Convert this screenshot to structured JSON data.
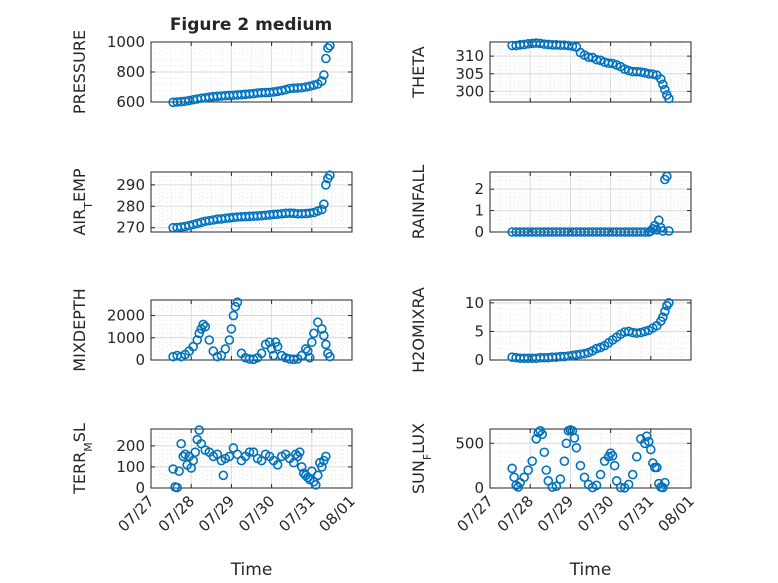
{
  "figure_title": "Figure 2 medium",
  "colors": {
    "series": "#0072BD",
    "axis": "#262626",
    "grid": "#d9d9d9",
    "background": "#ffffff"
  },
  "chart_data": [
    {
      "type": "scatter",
      "ylabel": "PRESSURE",
      "ylim": [
        600,
        1000
      ],
      "yticks": [
        600,
        800,
        1000
      ],
      "xlim": [
        0,
        5
      ],
      "xtick_labels": [],
      "xlabel": "",
      "x": [
        0.55,
        0.65,
        0.75,
        0.85,
        0.95,
        1.05,
        1.15,
        1.25,
        1.35,
        1.45,
        1.55,
        1.65,
        1.75,
        1.85,
        1.95,
        2.05,
        2.15,
        2.25,
        2.35,
        2.45,
        2.55,
        2.65,
        2.75,
        2.85,
        2.95,
        3.05,
        3.15,
        3.25,
        3.35,
        3.45,
        3.55,
        3.65,
        3.75,
        3.85,
        3.95,
        4.05,
        4.15,
        4.25,
        4.3,
        4.35,
        4.4,
        4.45
      ],
      "y": [
        598,
        600,
        602,
        605,
        610,
        615,
        620,
        625,
        628,
        632,
        636,
        638,
        640,
        642,
        644,
        645,
        647,
        649,
        651,
        654,
        656,
        660,
        662,
        663,
        664,
        667,
        671,
        676,
        682,
        690,
        692,
        694,
        695,
        700,
        705,
        712,
        720,
        740,
        780,
        890,
        960,
        975
      ]
    },
    {
      "type": "scatter",
      "ylabel": "THETA",
      "ylim": [
        297,
        314
      ],
      "yticks": [
        300,
        305,
        310
      ],
      "xlim": [
        0,
        5
      ],
      "xtick_labels": [],
      "xlabel": "",
      "x": [
        0.55,
        0.65,
        0.75,
        0.85,
        0.95,
        1.05,
        1.15,
        1.25,
        1.35,
        1.45,
        1.55,
        1.65,
        1.75,
        1.85,
        1.95,
        2.05,
        2.15,
        2.25,
        2.35,
        2.45,
        2.55,
        2.65,
        2.75,
        2.85,
        2.95,
        3.05,
        3.15,
        3.25,
        3.35,
        3.45,
        3.55,
        3.65,
        3.75,
        3.85,
        3.95,
        4.05,
        4.15,
        4.25,
        4.3,
        4.35,
        4.4,
        4.45
      ],
      "y": [
        313,
        313,
        313.2,
        313.3,
        313.5,
        313.6,
        313.7,
        313.6,
        313.4,
        313.3,
        313.2,
        313.2,
        313.1,
        313.1,
        313,
        312.8,
        312.6,
        311,
        310.3,
        309.7,
        309.6,
        309,
        308.8,
        308.3,
        308,
        307.9,
        307.5,
        307,
        306.3,
        305.9,
        305.6,
        305.6,
        305.5,
        305.3,
        305,
        304.9,
        304.6,
        303.5,
        302,
        300.5,
        299,
        298
      ]
    },
    {
      "type": "scatter",
      "ylabel": "AIR_TEMP",
      "ylim": [
        268,
        296
      ],
      "yticks": [
        270,
        280,
        290
      ],
      "xlim": [
        0,
        5
      ],
      "xtick_labels": [],
      "xlabel": "",
      "x": [
        0.55,
        0.65,
        0.75,
        0.85,
        0.95,
        1.05,
        1.15,
        1.25,
        1.35,
        1.45,
        1.55,
        1.65,
        1.75,
        1.85,
        1.95,
        2.05,
        2.15,
        2.25,
        2.35,
        2.45,
        2.55,
        2.65,
        2.75,
        2.85,
        2.95,
        3.05,
        3.15,
        3.25,
        3.35,
        3.45,
        3.55,
        3.65,
        3.75,
        3.85,
        3.95,
        4.05,
        4.15,
        4.25,
        4.3,
        4.35,
        4.4,
        4.45
      ],
      "y": [
        270,
        270.1,
        270.3,
        270.6,
        271,
        271.5,
        272,
        272.5,
        273,
        273.3,
        273.6,
        274,
        274.1,
        274.4,
        274.6,
        274.8,
        275,
        275.1,
        275.2,
        275.3,
        275.4,
        275.5,
        275.6,
        275.8,
        276,
        276.2,
        276.3,
        276.5,
        276.7,
        276.8,
        276.7,
        276.5,
        276.5,
        276.6,
        276.8,
        277.1,
        277.8,
        278.5,
        281,
        290,
        293,
        294.5
      ]
    },
    {
      "type": "scatter",
      "ylabel": "RAINFALL",
      "ylim": [
        0,
        2.8
      ],
      "yticks": [
        0,
        1,
        2
      ],
      "xlim": [
        0,
        5
      ],
      "xtick_labels": [],
      "xlabel": "",
      "x": [
        0.55,
        0.65,
        0.75,
        0.85,
        0.95,
        1.05,
        1.15,
        1.25,
        1.35,
        1.45,
        1.55,
        1.65,
        1.75,
        1.85,
        1.95,
        2.05,
        2.15,
        2.25,
        2.35,
        2.45,
        2.55,
        2.65,
        2.75,
        2.85,
        2.95,
        3.05,
        3.15,
        3.25,
        3.35,
        3.45,
        3.55,
        3.65,
        3.75,
        3.85,
        3.95,
        4.0,
        4.05,
        4.1,
        4.15,
        4.2,
        4.25,
        4.3,
        4.35,
        4.4,
        4.45
      ],
      "y": [
        0,
        0,
        0,
        0,
        0,
        0,
        0,
        0,
        0,
        0,
        0,
        0,
        0,
        0,
        0,
        0,
        0,
        0,
        0,
        0,
        0,
        0,
        0,
        0,
        0,
        0,
        0,
        0,
        0,
        0,
        0,
        0,
        0,
        0,
        0,
        0.05,
        0.15,
        0.3,
        0.1,
        0.55,
        0.2,
        0.05,
        2.45,
        2.6,
        0.05
      ]
    },
    {
      "type": "scatter",
      "ylabel": "MIXDEPTH",
      "ylim": [
        0,
        2700
      ],
      "yticks": [
        0,
        1000,
        2000
      ],
      "xlim": [
        0,
        5
      ],
      "xtick_labels": [],
      "xlabel": "",
      "x": [
        0.55,
        0.65,
        0.75,
        0.85,
        0.95,
        1.05,
        1.15,
        1.2,
        1.25,
        1.3,
        1.35,
        1.45,
        1.55,
        1.65,
        1.75,
        1.85,
        1.95,
        2.0,
        2.05,
        2.1,
        2.15,
        2.25,
        2.35,
        2.45,
        2.55,
        2.65,
        2.75,
        2.85,
        2.95,
        3.0,
        3.05,
        3.1,
        3.15,
        3.25,
        3.35,
        3.45,
        3.55,
        3.65,
        3.75,
        3.85,
        3.9,
        3.95,
        4.0,
        4.05,
        4.15,
        4.25,
        4.3,
        4.35,
        4.4,
        4.45
      ],
      "y": [
        150,
        200,
        150,
        250,
        400,
        600,
        900,
        1200,
        1400,
        1600,
        1500,
        900,
        400,
        150,
        200,
        500,
        900,
        1400,
        2000,
        2400,
        2600,
        300,
        100,
        50,
        30,
        100,
        300,
        700,
        800,
        500,
        200,
        800,
        600,
        200,
        100,
        50,
        30,
        50,
        200,
        500,
        400,
        100,
        800,
        1200,
        1700,
        1400,
        1100,
        700,
        300,
        150
      ]
    },
    {
      "type": "scatter",
      "ylabel": "H2OMIXRA",
      "ylim": [
        0,
        10.5
      ],
      "yticks": [
        0,
        5,
        10
      ],
      "xlim": [
        0,
        5
      ],
      "xtick_labels": [],
      "xlabel": "",
      "x": [
        0.55,
        0.65,
        0.75,
        0.85,
        0.95,
        1.05,
        1.15,
        1.25,
        1.35,
        1.45,
        1.55,
        1.65,
        1.75,
        1.85,
        1.95,
        2.05,
        2.15,
        2.25,
        2.35,
        2.45,
        2.55,
        2.65,
        2.75,
        2.85,
        2.95,
        3.05,
        3.15,
        3.25,
        3.35,
        3.45,
        3.55,
        3.65,
        3.75,
        3.85,
        3.95,
        4.05,
        4.15,
        4.25,
        4.3,
        4.35,
        4.4,
        4.45
      ],
      "y": [
        0.5,
        0.4,
        0.3,
        0.3,
        0.3,
        0.3,
        0.3,
        0.4,
        0.4,
        0.4,
        0.5,
        0.5,
        0.6,
        0.6,
        0.7,
        0.8,
        0.9,
        1,
        1.1,
        1.3,
        1.6,
        2,
        2.2,
        2.5,
        3,
        3.5,
        4,
        4.5,
        4.9,
        5,
        4.8,
        4.7,
        4.8,
        5,
        5.2,
        5.6,
        6,
        6.8,
        7.5,
        8.5,
        9.5,
        10
      ]
    },
    {
      "type": "scatter",
      "ylabel": "TERR_MSL",
      "ylim": [
        0,
        280
      ],
      "yticks": [
        0,
        100,
        200
      ],
      "xlim": [
        0,
        5
      ],
      "xtick_labels": [
        "07/27",
        "07/28",
        "07/29",
        "07/30",
        "07/31",
        "08/01"
      ],
      "xlabel": "Time",
      "x": [
        0.55,
        0.6,
        0.65,
        0.7,
        0.75,
        0.8,
        0.85,
        0.9,
        0.95,
        1.0,
        1.05,
        1.1,
        1.15,
        1.2,
        1.25,
        1.35,
        1.45,
        1.55,
        1.65,
        1.75,
        1.8,
        1.85,
        1.95,
        2.05,
        2.15,
        2.25,
        2.35,
        2.45,
        2.55,
        2.65,
        2.75,
        2.85,
        2.95,
        3.05,
        3.15,
        3.25,
        3.35,
        3.45,
        3.55,
        3.6,
        3.65,
        3.7,
        3.75,
        3.8,
        3.85,
        3.9,
        3.95,
        4.0,
        4.05,
        4.1,
        4.15,
        4.2,
        4.25,
        4.3,
        4.35
      ],
      "y": [
        90,
        5,
        2,
        80,
        210,
        150,
        160,
        110,
        150,
        95,
        130,
        170,
        230,
        275,
        210,
        180,
        170,
        150,
        160,
        130,
        60,
        140,
        150,
        190,
        160,
        130,
        150,
        170,
        170,
        140,
        130,
        160,
        150,
        130,
        110,
        150,
        160,
        140,
        120,
        160,
        150,
        170,
        100,
        70,
        60,
        50,
        40,
        80,
        30,
        15,
        60,
        120,
        100,
        130,
        150
      ]
    },
    {
      "type": "scatter",
      "ylabel": "SUN_FLUX",
      "ylim": [
        0,
        660
      ],
      "yticks": [
        0,
        500
      ],
      "xlim": [
        0,
        5
      ],
      "xtick_labels": [
        "07/27",
        "07/28",
        "07/29",
        "07/30",
        "07/31",
        "08/01"
      ],
      "xlabel": "Time",
      "x": [
        0.55,
        0.6,
        0.65,
        0.7,
        0.75,
        0.85,
        0.95,
        1.05,
        1.15,
        1.2,
        1.25,
        1.3,
        1.35,
        1.4,
        1.45,
        1.55,
        1.65,
        1.75,
        1.85,
        1.9,
        1.95,
        2.0,
        2.05,
        2.1,
        2.15,
        2.25,
        2.35,
        2.45,
        2.55,
        2.65,
        2.75,
        2.85,
        2.95,
        3.0,
        3.05,
        3.1,
        3.15,
        3.25,
        3.35,
        3.45,
        3.55,
        3.65,
        3.75,
        3.85,
        3.9,
        3.95,
        4.0,
        4.05,
        4.1,
        4.15,
        4.2,
        4.25,
        4.3,
        4.35
      ],
      "y": [
        220,
        120,
        30,
        10,
        60,
        120,
        200,
        300,
        550,
        620,
        640,
        600,
        400,
        200,
        80,
        10,
        20,
        100,
        300,
        500,
        640,
        650,
        640,
        560,
        450,
        250,
        120,
        40,
        5,
        30,
        150,
        300,
        350,
        390,
        360,
        250,
        80,
        5,
        2,
        40,
        150,
        350,
        550,
        500,
        580,
        520,
        430,
        280,
        230,
        230,
        50,
        10,
        5,
        60
      ]
    }
  ]
}
